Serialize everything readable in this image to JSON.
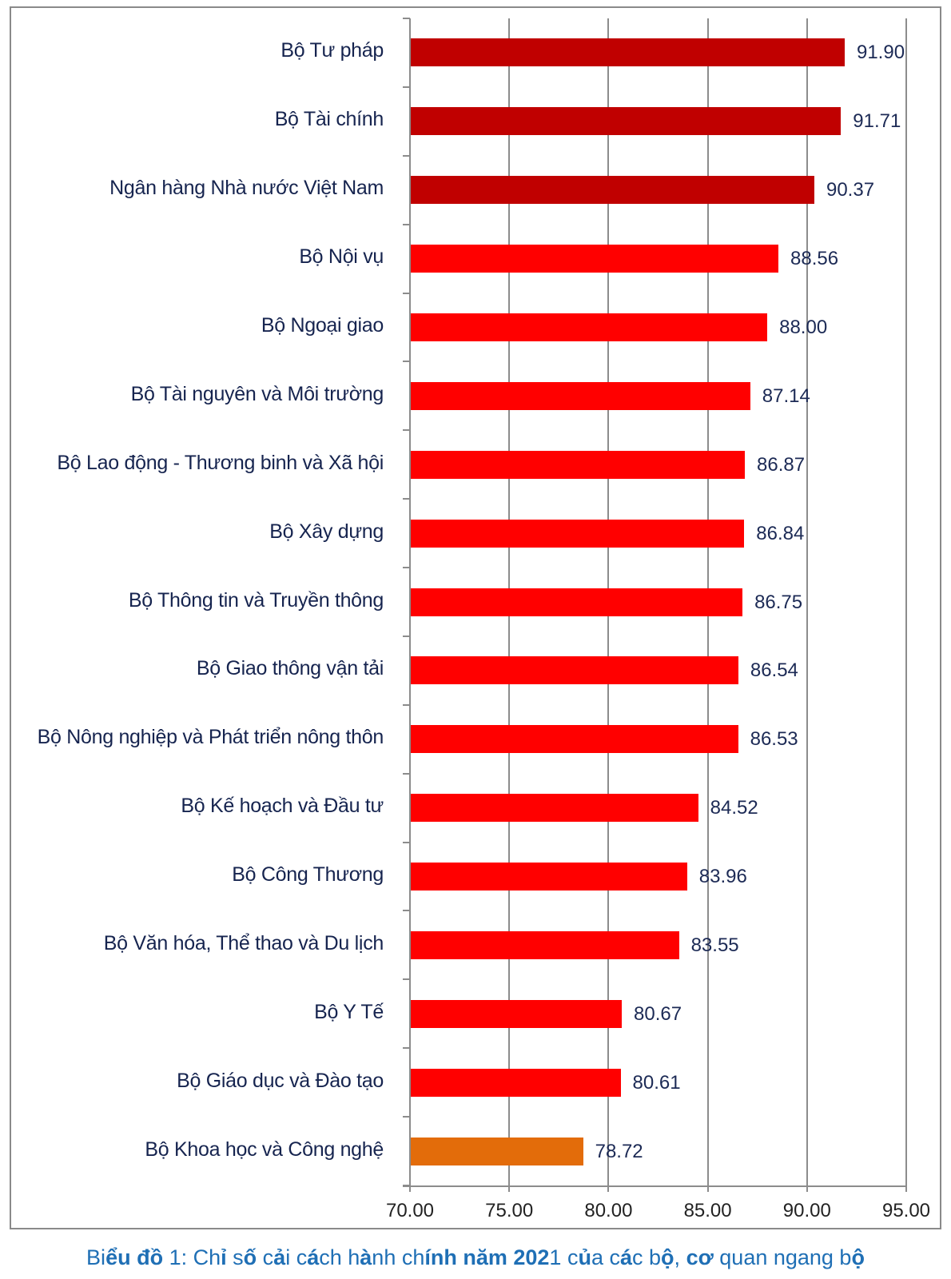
{
  "chart_data": {
    "type": "bar",
    "orientation": "horizontal",
    "title": "",
    "caption": "Biểu đồ 1: Chỉ số cải cách hành chính năm 2021 của các bộ, cơ quan ngang bộ",
    "xlabel": "",
    "ylabel": "",
    "xlim": [
      70,
      95
    ],
    "xticks": [
      "70.00",
      "75.00",
      "80.00",
      "85.00",
      "90.00",
      "95.00"
    ],
    "grid": "vertical",
    "legend": "none",
    "categories": [
      "Bộ Tư pháp",
      "Bộ Tài chính",
      "Ngân hàng Nhà nước Việt Nam",
      "Bộ Nội vụ",
      "Bộ Ngoại giao",
      "Bộ Tài nguyên và Môi trường",
      "Bộ Lao động - Thương binh và Xã hội",
      "Bộ Xây dựng",
      "Bộ Thông tin và Truyền thông",
      "Bộ Giao thông vận tải",
      "Bộ Nông nghiệp và Phát triển nông thôn",
      "Bộ Kế hoạch và Đầu tư",
      "Bộ Công Thương",
      "Bộ Văn hóa, Thể thao và Du lịch",
      "Bộ Y Tế",
      "Bộ Giáo dục và Đào tạo",
      "Bộ Khoa học và Công nghệ"
    ],
    "values": [
      91.9,
      91.71,
      90.37,
      88.56,
      88.0,
      87.14,
      86.87,
      86.84,
      86.75,
      86.54,
      86.53,
      84.52,
      83.96,
      83.55,
      80.67,
      80.61,
      78.72
    ],
    "value_labels": [
      "91.90",
      "91.71",
      "90.37",
      "88.56",
      "88.00",
      "87.14",
      "86.87",
      "86.84",
      "86.75",
      "86.54",
      "86.53",
      "84.52",
      "83.96",
      "83.55",
      "80.67",
      "80.61",
      "78.72"
    ],
    "bar_colors": [
      "#C00000",
      "#C00000",
      "#C00000",
      "#FF0000",
      "#FF0000",
      "#FF0000",
      "#FF0000",
      "#FF0000",
      "#FF0000",
      "#FF0000",
      "#FF0000",
      "#FF0000",
      "#FF0000",
      "#FF0000",
      "#FF0000",
      "#FF0000",
      "#E36C0A"
    ],
    "color_groups": {
      "top": "#C00000",
      "middle": "#FF0000",
      "bottom": "#E36C0A"
    }
  },
  "caption": {
    "parts": [
      {
        "text": "Bi",
        "bold": false
      },
      {
        "text": "ểu đồ",
        "bold": true
      },
      {
        "text": " 1: Ch",
        "bold": false
      },
      {
        "text": "ỉ",
        "bold": true
      },
      {
        "text": " s",
        "bold": false
      },
      {
        "text": "ố",
        "bold": true
      },
      {
        "text": " c",
        "bold": false
      },
      {
        "text": "ả",
        "bold": true
      },
      {
        "text": "i c",
        "bold": false
      },
      {
        "text": "á",
        "bold": true
      },
      {
        "text": "ch h",
        "bold": false
      },
      {
        "text": "à",
        "bold": true
      },
      {
        "text": "nh ch",
        "bold": false
      },
      {
        "text": "ính năm 202",
        "bold": true
      },
      {
        "text": "1 c",
        "bold": false
      },
      {
        "text": "ủ",
        "bold": true
      },
      {
        "text": "a c",
        "bold": false
      },
      {
        "text": "á",
        "bold": true
      },
      {
        "text": "c b",
        "bold": false
      },
      {
        "text": "ộ",
        "bold": true
      },
      {
        "text": ", ",
        "bold": false
      },
      {
        "text": "cơ",
        "bold": true
      },
      {
        "text": " quan ngang b",
        "bold": false
      },
      {
        "text": "ộ",
        "bold": true
      }
    ]
  }
}
